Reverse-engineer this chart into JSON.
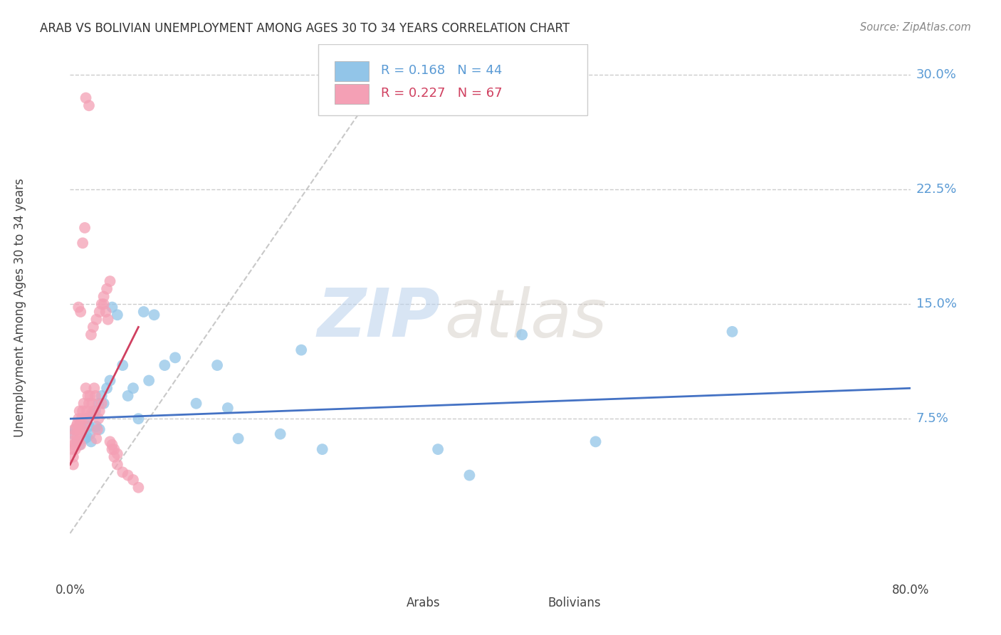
{
  "title": "ARAB VS BOLIVIAN UNEMPLOYMENT AMONG AGES 30 TO 34 YEARS CORRELATION CHART",
  "source": "Source: ZipAtlas.com",
  "ylabel": "Unemployment Among Ages 30 to 34 years",
  "xlim": [
    0.0,
    0.8
  ],
  "ylim": [
    -0.025,
    0.32
  ],
  "yticks": [
    0.075,
    0.15,
    0.225,
    0.3
  ],
  "ytick_labels": [
    "7.5%",
    "15.0%",
    "22.5%",
    "30.0%"
  ],
  "xtick_labels": [
    "0.0%",
    "",
    "",
    "",
    "",
    "",
    "",
    "",
    "80.0%"
  ],
  "arab_color": "#92C5E8",
  "bolivian_color": "#F4A0B5",
  "trendline_arab_color": "#4472C4",
  "trendline_bolivian_color": "#D04060",
  "diagonal_color": "#BBBBBB",
  "R_arab": 0.168,
  "N_arab": 44,
  "R_bolivian": 0.227,
  "N_bolivian": 67,
  "arab_x": [
    0.003,
    0.005,
    0.007,
    0.009,
    0.01,
    0.012,
    0.014,
    0.015,
    0.016,
    0.018,
    0.019,
    0.02,
    0.022,
    0.024,
    0.025,
    0.027,
    0.028,
    0.03,
    0.032,
    0.035,
    0.038,
    0.04,
    0.045,
    0.05,
    0.055,
    0.06,
    0.065,
    0.07,
    0.075,
    0.08,
    0.09,
    0.1,
    0.12,
    0.14,
    0.15,
    0.16,
    0.2,
    0.22,
    0.24,
    0.35,
    0.38,
    0.43,
    0.5,
    0.63
  ],
  "arab_y": [
    0.065,
    0.068,
    0.06,
    0.058,
    0.072,
    0.068,
    0.062,
    0.075,
    0.063,
    0.07,
    0.065,
    0.06,
    0.078,
    0.08,
    0.07,
    0.085,
    0.068,
    0.09,
    0.085,
    0.095,
    0.1,
    0.148,
    0.143,
    0.11,
    0.09,
    0.095,
    0.075,
    0.145,
    0.1,
    0.143,
    0.11,
    0.115,
    0.085,
    0.11,
    0.082,
    0.062,
    0.065,
    0.12,
    0.055,
    0.055,
    0.038,
    0.13,
    0.06,
    0.132
  ],
  "bolivian_x": [
    0.001,
    0.002,
    0.003,
    0.003,
    0.004,
    0.004,
    0.005,
    0.005,
    0.006,
    0.006,
    0.007,
    0.007,
    0.008,
    0.008,
    0.009,
    0.009,
    0.01,
    0.01,
    0.011,
    0.011,
    0.012,
    0.012,
    0.013,
    0.014,
    0.014,
    0.015,
    0.015,
    0.016,
    0.017,
    0.018,
    0.019,
    0.02,
    0.021,
    0.022,
    0.023,
    0.024,
    0.025,
    0.026,
    0.027,
    0.028,
    0.03,
    0.032,
    0.034,
    0.036,
    0.038,
    0.04,
    0.042,
    0.045,
    0.05,
    0.055,
    0.06,
    0.065,
    0.02,
    0.022,
    0.025,
    0.028,
    0.03,
    0.032,
    0.035,
    0.038,
    0.04,
    0.042,
    0.045,
    0.018,
    0.015,
    0.01,
    0.008
  ],
  "bolivian_y": [
    0.06,
    0.055,
    0.05,
    0.045,
    0.058,
    0.068,
    0.065,
    0.055,
    0.06,
    0.07,
    0.072,
    0.065,
    0.06,
    0.075,
    0.07,
    0.08,
    0.065,
    0.058,
    0.075,
    0.068,
    0.08,
    0.19,
    0.085,
    0.07,
    0.2,
    0.075,
    0.095,
    0.08,
    0.09,
    0.085,
    0.09,
    0.078,
    0.085,
    0.08,
    0.095,
    0.09,
    0.062,
    0.068,
    0.075,
    0.08,
    0.085,
    0.15,
    0.145,
    0.14,
    0.06,
    0.055,
    0.05,
    0.045,
    0.04,
    0.038,
    0.035,
    0.03,
    0.13,
    0.135,
    0.14,
    0.145,
    0.15,
    0.155,
    0.16,
    0.165,
    0.058,
    0.055,
    0.052,
    0.28,
    0.285,
    0.145,
    0.148
  ],
  "watermark_zip": "ZIP",
  "watermark_atlas": "atlas",
  "background_color": "#FFFFFF",
  "grid_color": "#CCCCCC"
}
